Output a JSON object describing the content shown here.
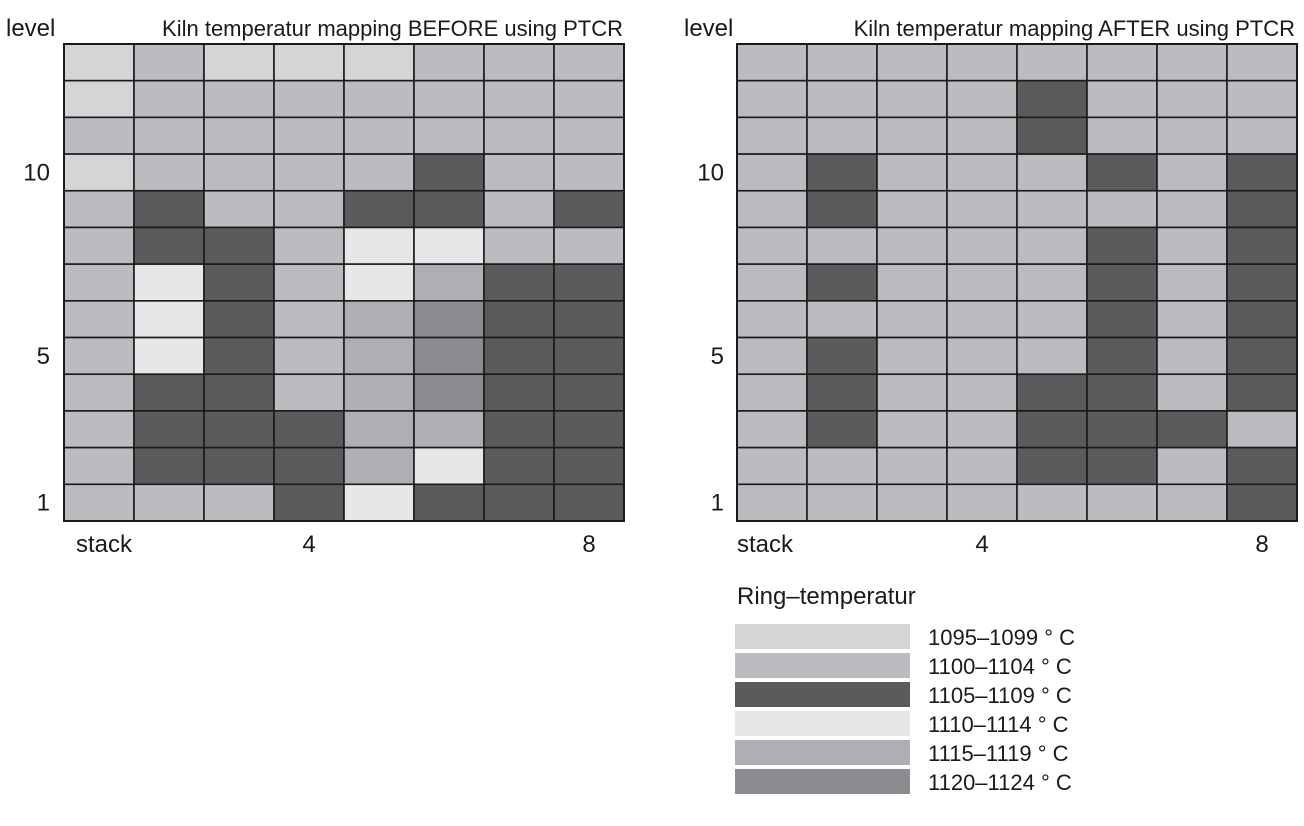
{
  "chart_data": [
    {
      "type": "heatmap",
      "title": "Kiln temperatur mapping BEFORE using PTCR",
      "ylabel": "level",
      "xlabel": "stack",
      "x_tick_labels": [
        {
          "col": 4,
          "label": "4"
        },
        {
          "col": 8,
          "label": "8"
        }
      ],
      "y_tick_labels": [
        {
          "level": 10,
          "label": "10"
        },
        {
          "level": 5,
          "label": "5"
        },
        {
          "level": 1,
          "label": "1"
        }
      ],
      "levels": [
        13,
        12,
        11,
        10,
        9,
        8,
        7,
        6,
        5,
        4,
        3,
        2,
        1
      ],
      "stacks": [
        1,
        2,
        3,
        4,
        5,
        6,
        7,
        8
      ],
      "cells": [
        [
          0,
          1,
          0,
          0,
          0,
          1,
          1,
          1
        ],
        [
          0,
          1,
          1,
          1,
          1,
          1,
          1,
          1
        ],
        [
          1,
          1,
          1,
          1,
          1,
          1,
          1,
          1
        ],
        [
          0,
          1,
          1,
          1,
          1,
          2,
          1,
          1
        ],
        [
          1,
          2,
          1,
          1,
          2,
          2,
          1,
          2
        ],
        [
          1,
          2,
          2,
          1,
          3,
          3,
          1,
          1
        ],
        [
          1,
          3,
          2,
          1,
          3,
          4,
          2,
          2
        ],
        [
          1,
          3,
          2,
          1,
          4,
          5,
          2,
          2
        ],
        [
          1,
          3,
          2,
          1,
          4,
          5,
          2,
          2
        ],
        [
          1,
          2,
          2,
          1,
          4,
          5,
          2,
          2
        ],
        [
          1,
          2,
          2,
          2,
          4,
          4,
          2,
          2
        ],
        [
          1,
          2,
          2,
          2,
          4,
          3,
          2,
          2
        ],
        [
          1,
          1,
          1,
          2,
          3,
          2,
          2,
          2
        ]
      ]
    },
    {
      "type": "heatmap",
      "title": "Kiln temperatur mapping AFTER using PTCR",
      "ylabel": "level",
      "xlabel": "stack",
      "x_tick_labels": [
        {
          "col": 4,
          "label": "4"
        },
        {
          "col": 8,
          "label": "8"
        }
      ],
      "y_tick_labels": [
        {
          "level": 10,
          "label": "10"
        },
        {
          "level": 5,
          "label": "5"
        },
        {
          "level": 1,
          "label": "1"
        }
      ],
      "levels": [
        13,
        12,
        11,
        10,
        9,
        8,
        7,
        6,
        5,
        4,
        3,
        2,
        1
      ],
      "stacks": [
        1,
        2,
        3,
        4,
        5,
        6,
        7,
        8
      ],
      "cells": [
        [
          1,
          1,
          1,
          1,
          1,
          1,
          1,
          1
        ],
        [
          1,
          1,
          1,
          1,
          2,
          1,
          1,
          1
        ],
        [
          1,
          1,
          1,
          1,
          2,
          1,
          1,
          1
        ],
        [
          1,
          2,
          1,
          1,
          1,
          2,
          1,
          2
        ],
        [
          1,
          2,
          1,
          1,
          1,
          1,
          1,
          2
        ],
        [
          1,
          1,
          1,
          1,
          1,
          2,
          1,
          2
        ],
        [
          1,
          2,
          1,
          1,
          1,
          2,
          1,
          2
        ],
        [
          1,
          1,
          1,
          1,
          1,
          2,
          1,
          2
        ],
        [
          1,
          2,
          1,
          1,
          1,
          2,
          1,
          2
        ],
        [
          1,
          2,
          1,
          1,
          2,
          2,
          1,
          2
        ],
        [
          1,
          2,
          1,
          1,
          2,
          2,
          2,
          1
        ],
        [
          1,
          1,
          1,
          1,
          2,
          2,
          1,
          2
        ],
        [
          1,
          1,
          1,
          1,
          1,
          1,
          1,
          2
        ]
      ]
    }
  ],
  "legend": {
    "title": "Ring–temperatur",
    "items": [
      {
        "label": "1095–1099 ° C",
        "color": "#d4d5d7"
      },
      {
        "label": "1100–1104 ° C",
        "color": "#bbbcc0"
      },
      {
        "label": "1105–1109 ° C",
        "color": "#5b5b5e"
      },
      {
        "label": "1110–1114 ° C",
        "color": "#e6e7e9"
      },
      {
        "label": "1115–1119 ° C",
        "color": "#aeafb2"
      },
      {
        "label": "1120–1124 ° C",
        "color": "#8b8c8f"
      }
    ]
  }
}
